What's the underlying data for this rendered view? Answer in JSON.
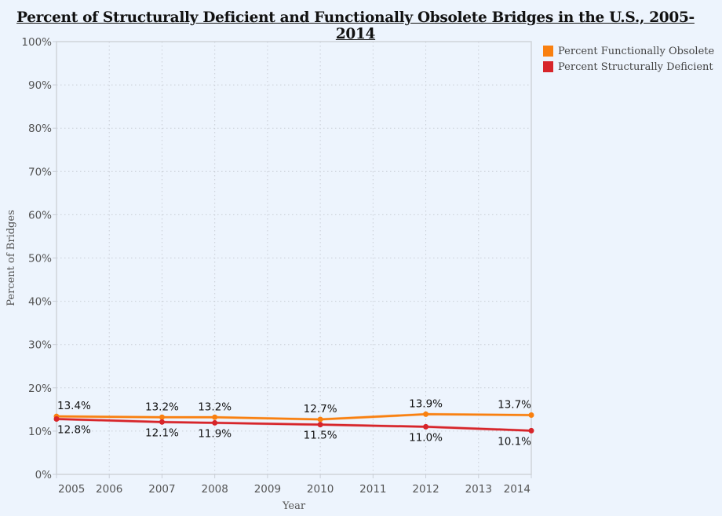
{
  "chart_data": {
    "type": "line",
    "title": "Percent of Structurally Deficient and Functionally Obsolete Bridges in the U.S., 2005-2014",
    "xlabel": "Year",
    "ylabel": "Percent of Bridges",
    "xlim": [
      2005,
      2014
    ],
    "ylim": [
      0,
      100
    ],
    "x_ticks": [
      2005,
      2006,
      2007,
      2008,
      2009,
      2010,
      2011,
      2012,
      2013,
      2014
    ],
    "y_ticks": [
      0,
      10,
      20,
      30,
      40,
      50,
      60,
      70,
      80,
      90,
      100
    ],
    "y_tick_labels": [
      "0%",
      "10%",
      "20%",
      "30%",
      "40%",
      "50%",
      "60%",
      "70%",
      "80%",
      "90%",
      "100%"
    ],
    "grid": true,
    "legend_position": "top-right",
    "series": [
      {
        "name": "Percent Functionally Obsolete",
        "color": "#f98010",
        "label_position": "above",
        "x": [
          2005,
          2007,
          2008,
          2010,
          2012,
          2014
        ],
        "values": [
          13.4,
          13.2,
          13.2,
          12.7,
          13.9,
          13.7
        ],
        "labels": [
          "13.4%",
          "13.2%",
          "13.2%",
          "12.7%",
          "13.9%",
          "13.7%"
        ]
      },
      {
        "name": "Percent Structurally Deficient",
        "color": "#d7252a",
        "label_position": "below",
        "x": [
          2005,
          2007,
          2008,
          2010,
          2012,
          2014
        ],
        "values": [
          12.8,
          12.1,
          11.9,
          11.5,
          11.0,
          10.1
        ],
        "labels": [
          "12.8%",
          "12.1%",
          "11.9%",
          "11.5%",
          "11.0%",
          "10.1%"
        ]
      }
    ]
  }
}
